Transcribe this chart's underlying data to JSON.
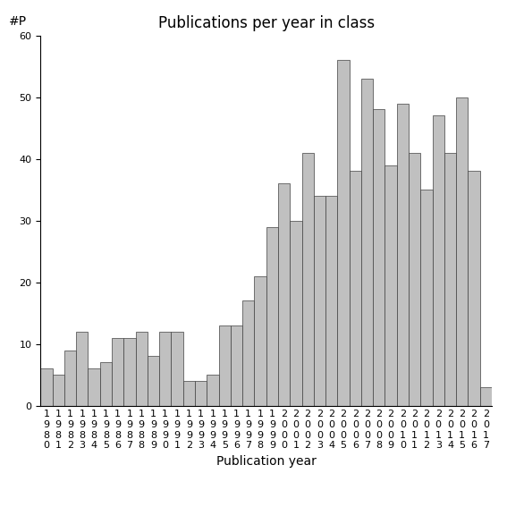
{
  "title": "Publications per year in class",
  "xlabel": "Publication year",
  "ylabel": "#P",
  "years": [
    1980,
    1981,
    1982,
    1983,
    1984,
    1985,
    1986,
    1987,
    1988,
    1989,
    1990,
    1991,
    1992,
    1993,
    1994,
    1995,
    1996,
    1997,
    1998,
    1999,
    2000,
    2001,
    2002,
    2003,
    2004,
    2005,
    2006,
    2007,
    2008,
    2009,
    2010,
    2011,
    2012,
    2013,
    2014,
    2015,
    2016,
    2017
  ],
  "values": [
    6,
    5,
    9,
    12,
    6,
    7,
    11,
    11,
    12,
    8,
    12,
    12,
    4,
    4,
    5,
    13,
    13,
    17,
    21,
    29,
    36,
    30,
    41,
    34,
    34,
    56,
    38,
    53,
    48,
    39,
    49,
    41,
    35,
    47,
    41,
    50,
    38,
    3
  ],
  "bar_color": "#c0c0c0",
  "bar_edge_color": "#404040",
  "ylim": [
    0,
    60
  ],
  "yticks": [
    0,
    10,
    20,
    30,
    40,
    50,
    60
  ],
  "background_color": "#ffffff",
  "title_fontsize": 12,
  "axis_label_fontsize": 10,
  "tick_fontsize": 8
}
